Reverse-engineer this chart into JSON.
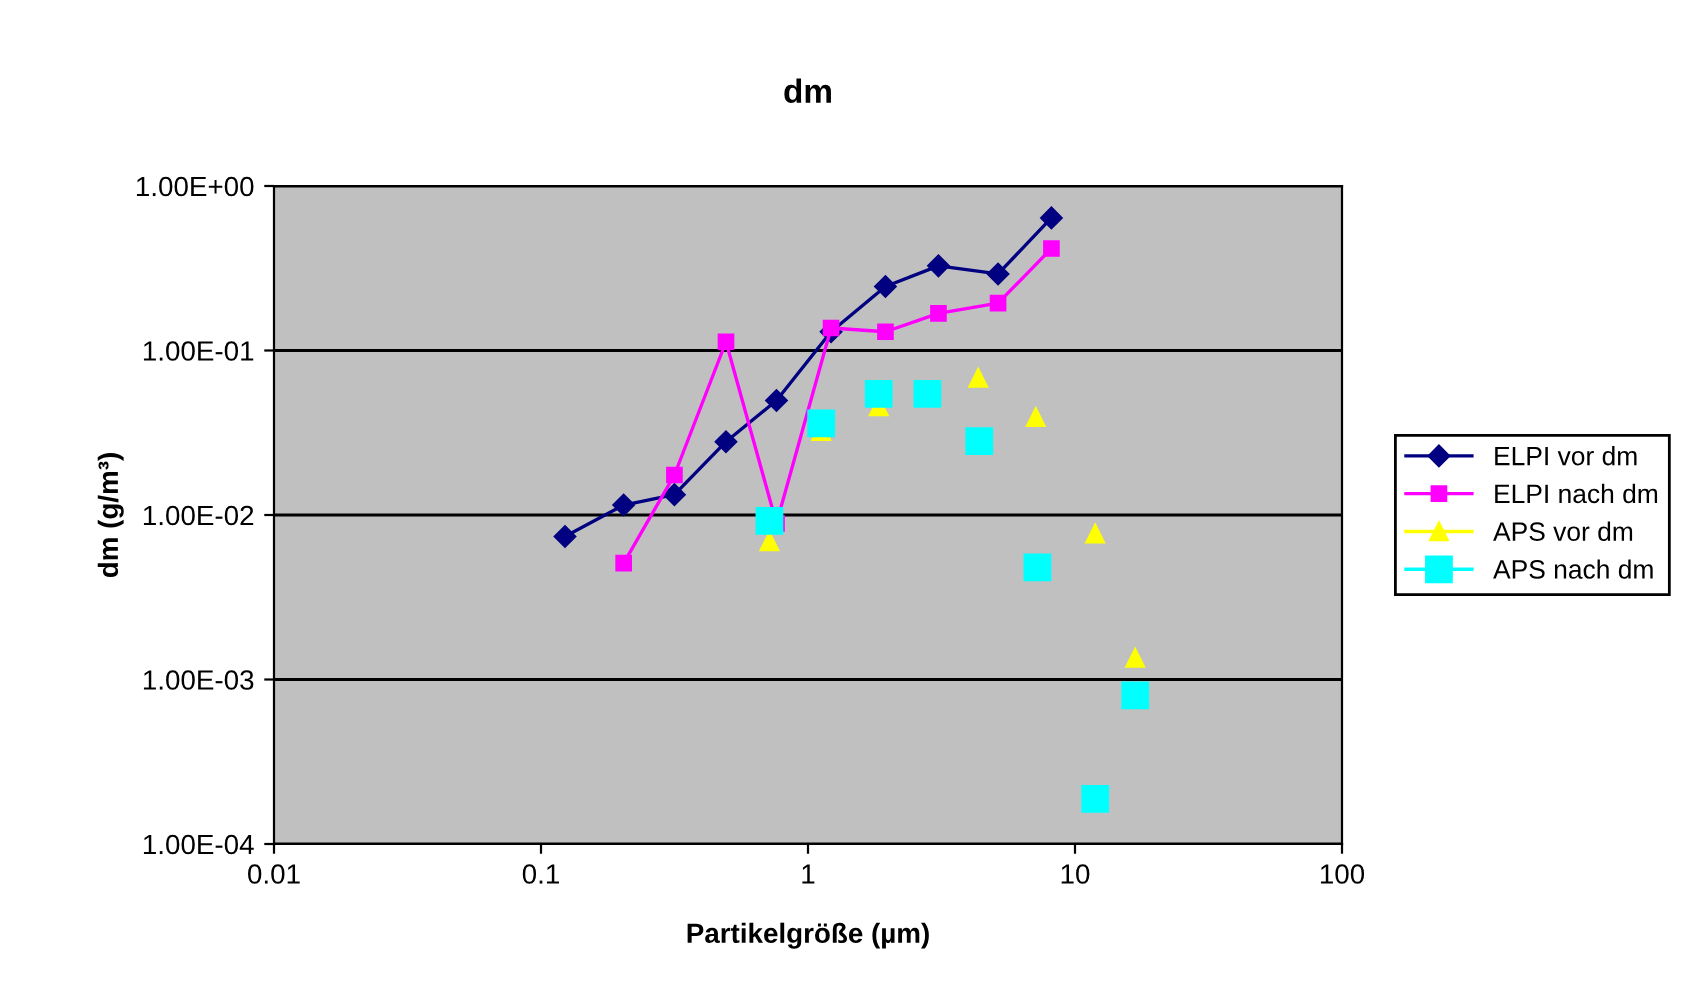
{
  "chart_data": {
    "type": "line",
    "title": "dm",
    "xlabel": "Partikelgröße (µm)",
    "ylabel": "dm (g/m³)",
    "log": "xy",
    "xlim": [
      0.01,
      100
    ],
    "xticks": [
      0.01,
      0.1,
      1,
      10,
      100
    ],
    "ylim": [
      0.0001,
      1
    ],
    "yticks": [
      {
        "value": 0.0001,
        "label": "1.00E-04"
      },
      {
        "value": 0.001,
        "label": "1.00E-03"
      },
      {
        "value": 0.01,
        "label": "1.00E-02"
      },
      {
        "value": 0.1,
        "label": "1.00E-01"
      },
      {
        "value": 1,
        "label": "1.00E+00"
      }
    ],
    "grid": "y",
    "legend": "right",
    "series": [
      {
        "name": "ELPI vor dm",
        "marker": "diamond",
        "color": "#000080",
        "x": [
          0.123,
          0.204,
          0.316,
          0.493,
          0.762,
          1.22,
          1.95,
          3.08,
          5.15,
          8.16
        ],
        "values": [
          0.0074,
          0.0115,
          0.0133,
          0.0279,
          0.0497,
          0.13,
          0.245,
          0.327,
          0.292,
          0.64
        ]
      },
      {
        "name": "ELPI nach dm",
        "marker": "square",
        "color": "#ff00ff",
        "x": [
          0.204,
          0.316,
          0.493,
          0.762,
          1.22,
          1.95,
          3.08,
          5.15,
          8.16
        ],
        "values": [
          0.0051,
          0.0175,
          0.113,
          0.0089,
          0.137,
          0.13,
          0.168,
          0.194,
          0.417
        ]
      },
      {
        "name": "APS vor dm",
        "type": "scatter",
        "marker": "triangle",
        "color": "#ffff00",
        "x": [
          0.717,
          1.12,
          1.84,
          4.34,
          7.13,
          11.9,
          16.8
        ],
        "values": [
          0.0069,
          0.0323,
          0.0457,
          0.068,
          0.0393,
          0.0077,
          0.00135
        ]
      },
      {
        "name": "APS nach dm",
        "type": "scatter",
        "marker": "square",
        "color": "#00ffff",
        "x": [
          0.717,
          1.12,
          1.84,
          2.8,
          4.38,
          7.23,
          11.9,
          16.8
        ],
        "values": [
          0.0092,
          0.0361,
          0.0545,
          0.0545,
          0.0281,
          0.0048,
          0.000188,
          0.0008
        ]
      }
    ]
  }
}
